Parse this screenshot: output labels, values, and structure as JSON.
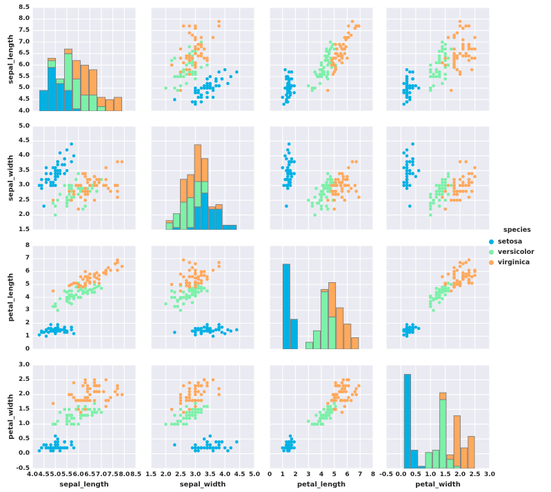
{
  "legend": {
    "title": "species",
    "entries": [
      {
        "label": "setosa",
        "color": "#00b1e4"
      },
      {
        "label": "versicolor",
        "color": "#7df0a9"
      },
      {
        "label": "virginica",
        "color": "#ffa95c"
      }
    ]
  },
  "style": {
    "figure_bg": "#ffffff",
    "panel_bg": "#eaeaf2",
    "grid_color": "#ffffff",
    "text_color": "#262626"
  },
  "chart_data": {
    "type": "scatter",
    "plot_kind": "pairplot-scatter-matrix",
    "hue": "species",
    "grid": true,
    "legend_position": "right",
    "variables": [
      "sepal_length",
      "sepal_width",
      "petal_length",
      "petal_width"
    ],
    "axes": {
      "sepal_length": {
        "range": [
          4.0,
          8.5
        ],
        "tick_values": [
          4.0,
          4.5,
          5.0,
          5.5,
          6.0,
          6.5,
          7.0,
          7.5,
          8.0,
          8.5
        ],
        "tick_labels": [
          "4.0",
          "4.5",
          "5.0",
          "5.5",
          "6.0",
          "6.5",
          "7.0",
          "7.5",
          "8.0",
          "8.5"
        ]
      },
      "sepal_width": {
        "range": [
          1.5,
          5.0
        ],
        "tick_values": [
          1.5,
          2.0,
          2.5,
          3.0,
          3.5,
          4.0,
          4.5,
          5.0
        ],
        "tick_labels": [
          "1.5",
          "2.0",
          "2.5",
          "3.0",
          "3.5",
          "4.0",
          "4.5",
          "5.0"
        ]
      },
      "petal_length": {
        "range": [
          0,
          8
        ],
        "tick_values": [
          0,
          1,
          2,
          3,
          4,
          5,
          6,
          7,
          8
        ],
        "tick_labels": [
          "0",
          "1",
          "2",
          "3",
          "4",
          "5",
          "6",
          "7",
          "8"
        ]
      },
      "petal_width": {
        "range": [
          -0.5,
          3.0
        ],
        "tick_values": [
          -0.5,
          0.0,
          0.5,
          1.0,
          1.5,
          2.0,
          2.5,
          3.0
        ],
        "tick_labels": [
          "-0.5",
          "0.0",
          "0.5",
          "1.0",
          "1.5",
          "2.0",
          "2.5",
          "3.0"
        ]
      }
    },
    "diagonal": {
      "kind": "stacked-histogram",
      "bins": 10,
      "max_bar_fraction": 0.91,
      "bar_edge_color": "#7d7d7d"
    },
    "series": [
      {
        "name": "setosa",
        "color": "#00b1e4",
        "points": [
          [
            5.1,
            3.5,
            1.4,
            0.2
          ],
          [
            4.9,
            3.0,
            1.4,
            0.2
          ],
          [
            4.7,
            3.2,
            1.3,
            0.2
          ],
          [
            4.6,
            3.1,
            1.5,
            0.2
          ],
          [
            5.0,
            3.6,
            1.4,
            0.2
          ],
          [
            5.4,
            3.9,
            1.7,
            0.4
          ],
          [
            4.6,
            3.4,
            1.4,
            0.3
          ],
          [
            5.0,
            3.4,
            1.5,
            0.2
          ],
          [
            4.4,
            2.9,
            1.4,
            0.2
          ],
          [
            4.9,
            3.1,
            1.5,
            0.1
          ],
          [
            5.4,
            3.7,
            1.5,
            0.2
          ],
          [
            4.8,
            3.4,
            1.6,
            0.2
          ],
          [
            4.8,
            3.0,
            1.4,
            0.1
          ],
          [
            4.3,
            3.0,
            1.1,
            0.1
          ],
          [
            5.8,
            4.0,
            1.2,
            0.2
          ],
          [
            5.7,
            4.4,
            1.5,
            0.4
          ],
          [
            5.4,
            3.9,
            1.3,
            0.4
          ],
          [
            5.1,
            3.5,
            1.4,
            0.3
          ],
          [
            5.7,
            3.8,
            1.7,
            0.3
          ],
          [
            5.1,
            3.8,
            1.5,
            0.3
          ],
          [
            5.4,
            3.4,
            1.7,
            0.2
          ],
          [
            5.1,
            3.7,
            1.5,
            0.4
          ],
          [
            4.6,
            3.6,
            1.0,
            0.2
          ],
          [
            5.1,
            3.3,
            1.7,
            0.5
          ],
          [
            4.8,
            3.4,
            1.9,
            0.2
          ],
          [
            5.0,
            3.0,
            1.6,
            0.2
          ],
          [
            5.0,
            3.4,
            1.6,
            0.4
          ],
          [
            5.2,
            3.5,
            1.5,
            0.2
          ],
          [
            5.2,
            3.4,
            1.4,
            0.2
          ],
          [
            4.7,
            3.2,
            1.6,
            0.2
          ],
          [
            4.8,
            3.1,
            1.6,
            0.2
          ],
          [
            5.4,
            3.4,
            1.5,
            0.4
          ],
          [
            5.2,
            4.1,
            1.5,
            0.1
          ],
          [
            5.5,
            4.2,
            1.4,
            0.2
          ],
          [
            4.9,
            3.1,
            1.5,
            0.2
          ],
          [
            5.0,
            3.2,
            1.2,
            0.2
          ],
          [
            5.5,
            3.5,
            1.3,
            0.2
          ],
          [
            4.9,
            3.6,
            1.4,
            0.1
          ],
          [
            4.4,
            3.0,
            1.3,
            0.2
          ],
          [
            5.1,
            3.4,
            1.5,
            0.2
          ],
          [
            5.0,
            3.5,
            1.3,
            0.3
          ],
          [
            4.5,
            2.3,
            1.3,
            0.3
          ],
          [
            4.4,
            3.2,
            1.3,
            0.2
          ],
          [
            5.0,
            3.5,
            1.6,
            0.6
          ],
          [
            5.1,
            3.8,
            1.9,
            0.4
          ],
          [
            4.8,
            3.0,
            1.4,
            0.3
          ],
          [
            5.1,
            3.8,
            1.6,
            0.2
          ],
          [
            4.6,
            3.2,
            1.4,
            0.2
          ],
          [
            5.3,
            3.7,
            1.5,
            0.2
          ],
          [
            5.0,
            3.3,
            1.4,
            0.2
          ]
        ]
      },
      {
        "name": "versicolor",
        "color": "#7df0a9",
        "points": [
          [
            7.0,
            3.2,
            4.7,
            1.4
          ],
          [
            6.4,
            3.2,
            4.5,
            1.5
          ],
          [
            6.9,
            3.1,
            4.9,
            1.5
          ],
          [
            5.5,
            2.3,
            4.0,
            1.3
          ],
          [
            6.5,
            2.8,
            4.6,
            1.5
          ],
          [
            5.7,
            2.8,
            4.5,
            1.3
          ],
          [
            6.3,
            3.3,
            4.7,
            1.6
          ],
          [
            4.9,
            2.4,
            3.3,
            1.0
          ],
          [
            6.6,
            2.9,
            4.6,
            1.3
          ],
          [
            5.2,
            2.7,
            3.9,
            1.4
          ],
          [
            5.0,
            2.0,
            3.5,
            1.0
          ],
          [
            5.9,
            3.0,
            4.2,
            1.5
          ],
          [
            6.0,
            2.2,
            4.0,
            1.0
          ],
          [
            6.1,
            2.9,
            4.7,
            1.4
          ],
          [
            5.6,
            2.9,
            3.6,
            1.3
          ],
          [
            6.7,
            3.1,
            4.4,
            1.4
          ],
          [
            5.6,
            3.0,
            4.5,
            1.5
          ],
          [
            5.8,
            2.7,
            4.1,
            1.0
          ],
          [
            6.2,
            2.2,
            4.5,
            1.5
          ],
          [
            5.6,
            2.5,
            3.9,
            1.1
          ],
          [
            5.9,
            3.2,
            4.8,
            1.8
          ],
          [
            6.1,
            2.8,
            4.0,
            1.3
          ],
          [
            6.3,
            2.5,
            4.9,
            1.5
          ],
          [
            6.1,
            2.8,
            4.7,
            1.2
          ],
          [
            6.4,
            2.9,
            4.3,
            1.3
          ],
          [
            6.6,
            3.0,
            4.4,
            1.4
          ],
          [
            6.8,
            2.8,
            4.8,
            1.4
          ],
          [
            6.7,
            3.0,
            5.0,
            1.7
          ],
          [
            6.0,
            2.9,
            4.5,
            1.5
          ],
          [
            5.7,
            2.6,
            3.5,
            1.0
          ],
          [
            5.5,
            2.4,
            3.8,
            1.1
          ],
          [
            5.5,
            2.4,
            3.7,
            1.0
          ],
          [
            5.8,
            2.7,
            3.9,
            1.2
          ],
          [
            6.0,
            2.7,
            5.1,
            1.6
          ],
          [
            5.4,
            3.0,
            4.5,
            1.5
          ],
          [
            6.0,
            3.4,
            4.5,
            1.6
          ],
          [
            6.7,
            3.1,
            4.7,
            1.5
          ],
          [
            6.3,
            2.3,
            4.4,
            1.3
          ],
          [
            5.6,
            3.0,
            4.1,
            1.3
          ],
          [
            5.5,
            2.5,
            4.0,
            1.3
          ],
          [
            5.5,
            2.6,
            4.4,
            1.2
          ],
          [
            6.1,
            3.0,
            4.6,
            1.4
          ],
          [
            5.8,
            2.6,
            4.0,
            1.2
          ],
          [
            5.0,
            2.3,
            3.3,
            1.0
          ],
          [
            5.6,
            2.7,
            4.2,
            1.3
          ],
          [
            5.7,
            3.0,
            4.2,
            1.2
          ],
          [
            5.7,
            2.9,
            4.2,
            1.3
          ],
          [
            6.2,
            2.9,
            4.3,
            1.3
          ],
          [
            5.1,
            2.5,
            3.0,
            1.1
          ],
          [
            5.7,
            2.8,
            4.1,
            1.3
          ]
        ]
      },
      {
        "name": "virginica",
        "color": "#ffa95c",
        "points": [
          [
            6.3,
            3.3,
            6.0,
            2.5
          ],
          [
            5.8,
            2.7,
            5.1,
            1.9
          ],
          [
            7.1,
            3.0,
            5.9,
            2.1
          ],
          [
            6.3,
            2.9,
            5.6,
            1.8
          ],
          [
            6.5,
            3.0,
            5.8,
            2.2
          ],
          [
            7.6,
            3.0,
            6.6,
            2.1
          ],
          [
            4.9,
            2.5,
            4.5,
            1.7
          ],
          [
            7.3,
            2.9,
            6.3,
            1.8
          ],
          [
            6.7,
            2.5,
            5.8,
            1.8
          ],
          [
            7.2,
            3.6,
            6.1,
            2.5
          ],
          [
            6.5,
            3.2,
            5.1,
            2.0
          ],
          [
            6.4,
            2.7,
            5.3,
            1.9
          ],
          [
            6.8,
            3.0,
            5.5,
            2.1
          ],
          [
            5.7,
            2.5,
            5.0,
            2.0
          ],
          [
            5.8,
            2.8,
            5.1,
            2.4
          ],
          [
            6.4,
            3.2,
            5.3,
            2.3
          ],
          [
            6.5,
            3.0,
            5.5,
            1.8
          ],
          [
            7.7,
            3.8,
            6.7,
            2.2
          ],
          [
            7.7,
            2.6,
            6.9,
            2.3
          ],
          [
            6.0,
            2.2,
            5.0,
            1.5
          ],
          [
            6.9,
            3.2,
            5.7,
            2.3
          ],
          [
            5.6,
            2.8,
            4.9,
            2.0
          ],
          [
            7.7,
            2.8,
            6.7,
            2.0
          ],
          [
            6.3,
            2.7,
            4.9,
            1.8
          ],
          [
            6.7,
            3.3,
            5.7,
            2.1
          ],
          [
            7.2,
            3.2,
            6.0,
            1.8
          ],
          [
            6.2,
            2.8,
            4.8,
            1.8
          ],
          [
            6.1,
            3.0,
            4.9,
            1.8
          ],
          [
            6.4,
            2.8,
            5.6,
            2.1
          ],
          [
            7.2,
            3.0,
            5.8,
            1.6
          ],
          [
            7.4,
            2.8,
            6.1,
            1.9
          ],
          [
            7.9,
            3.8,
            6.4,
            2.0
          ],
          [
            6.4,
            2.8,
            5.6,
            2.2
          ],
          [
            6.3,
            2.8,
            5.1,
            1.5
          ],
          [
            6.1,
            2.6,
            5.6,
            1.4
          ],
          [
            7.7,
            3.0,
            6.1,
            2.3
          ],
          [
            6.3,
            3.4,
            5.6,
            2.4
          ],
          [
            6.4,
            3.1,
            5.5,
            1.8
          ],
          [
            6.0,
            3.0,
            4.8,
            1.8
          ],
          [
            6.9,
            3.1,
            5.4,
            2.1
          ],
          [
            6.7,
            3.1,
            5.6,
            2.4
          ],
          [
            6.9,
            3.1,
            5.1,
            2.3
          ],
          [
            5.8,
            2.7,
            5.1,
            1.9
          ],
          [
            6.8,
            3.2,
            5.9,
            2.3
          ],
          [
            6.7,
            3.3,
            5.7,
            2.5
          ],
          [
            6.7,
            3.0,
            5.2,
            2.3
          ],
          [
            6.3,
            2.5,
            5.0,
            1.9
          ],
          [
            6.5,
            3.0,
            5.2,
            2.0
          ],
          [
            6.2,
            3.4,
            5.4,
            2.3
          ],
          [
            5.9,
            3.0,
            5.1,
            1.8
          ]
        ]
      }
    ]
  }
}
